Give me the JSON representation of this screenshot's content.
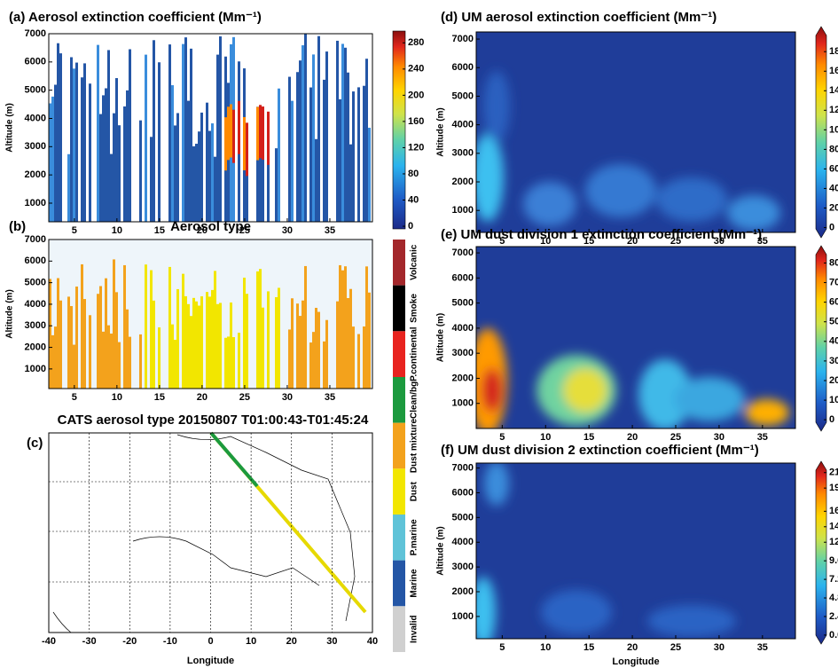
{
  "panels": [
    {
      "title": "(a)  Aerosol extinction coefficient (Mm⁻¹)",
      "ylabel": "Altitude (m)",
      "xticks": [
        5,
        10,
        15,
        20,
        25,
        30,
        35
      ],
      "xlim": [
        2,
        40
      ],
      "yticks": [
        1000,
        2000,
        3000,
        4000,
        5000,
        6000,
        7000
      ],
      "ylim": [
        340,
        7000
      ],
      "cbar_ticks": [
        0,
        40,
        80,
        120,
        160,
        200,
        240,
        280
      ],
      "cbar_lim": [
        -4,
        298
      ]
    },
    {
      "label": "(b)",
      "title": "Aerosol type",
      "ylabel": "Altitude (m)",
      "xticks": [
        5,
        10,
        15,
        20,
        25,
        30,
        35
      ],
      "xlim": [
        2,
        40
      ],
      "yticks": [
        1000,
        2000,
        3000,
        4000,
        5000,
        6000,
        7000
      ],
      "ylim": [
        90,
        7000
      ]
    },
    {
      "label": "(c)",
      "title": "CATS aerosol type 20150807 T01:00:43-T01:45:24",
      "xlabel": "Longitude",
      "xticks": [
        -40,
        -30,
        -20,
        -10,
        0,
        10,
        20,
        30,
        40
      ],
      "xlim": [
        -40,
        40
      ]
    },
    {
      "title": "(d)  UM aerosol extinction coefficient (Mm⁻¹)",
      "ylabel": "Altitude (m)",
      "xticks": [
        5,
        10,
        15,
        20,
        25,
        30,
        35
      ],
      "xlim": [
        2,
        38.8
      ],
      "yticks": [
        1000,
        2000,
        3000,
        4000,
        5000,
        6000,
        7000
      ],
      "ylim": [
        230,
        7250
      ],
      "cbar_ticks": [
        0,
        20,
        40,
        60,
        80,
        100,
        120,
        140,
        160,
        180
      ],
      "cbar_lim": [
        -5,
        202
      ]
    },
    {
      "title": "(e) UM dust division 1 extinction coefficient (Mm⁻¹)",
      "ylabel": "Altitude (m)",
      "xticks": [
        5,
        10,
        15,
        20,
        25,
        30,
        35
      ],
      "xlim": [
        2,
        38.8
      ],
      "yticks": [
        1000,
        2000,
        3000,
        4000,
        5000,
        6000,
        7000
      ],
      "ylim": [
        0,
        7250
      ],
      "cbar_ticks": [
        0,
        10,
        20,
        30,
        40,
        50,
        60,
        70,
        80
      ],
      "cbar_lim": [
        -4,
        87
      ]
    },
    {
      "title": "(f) UM dust division 2 extinction coefficient (Mm⁻¹)",
      "ylabel": "Altitude (m)",
      "xlabel": "Longitude",
      "xticks": [
        5,
        10,
        15,
        20,
        25,
        30,
        35
      ],
      "xlim": [
        2,
        38.8
      ],
      "yticks": [
        1000,
        2000,
        3000,
        4000,
        5000,
        6000,
        7000
      ],
      "ylim": [
        100,
        7200
      ],
      "cbar_ticks": [
        {
          "value": 0,
          "label": "0.0"
        },
        2.4,
        4.8,
        7.2,
        9.6,
        12,
        14,
        16,
        19,
        21
      ],
      "cbar_lim": [
        -0.7,
        22
      ]
    }
  ],
  "type_legend": {
    "names": [
      "Volcanic",
      "Smoke",
      "P.continental",
      "Clean/bg",
      "Dust mixture",
      "Dust",
      "P.marine",
      "Marine",
      "Invalid"
    ],
    "colors": [
      "#a3272b",
      "#000000",
      "#e8231f",
      "#1c9a3e",
      "#f3a21c",
      "#f2e600",
      "#5fc3d8",
      "#2456a6",
      "#d0d0d0"
    ]
  }
}
